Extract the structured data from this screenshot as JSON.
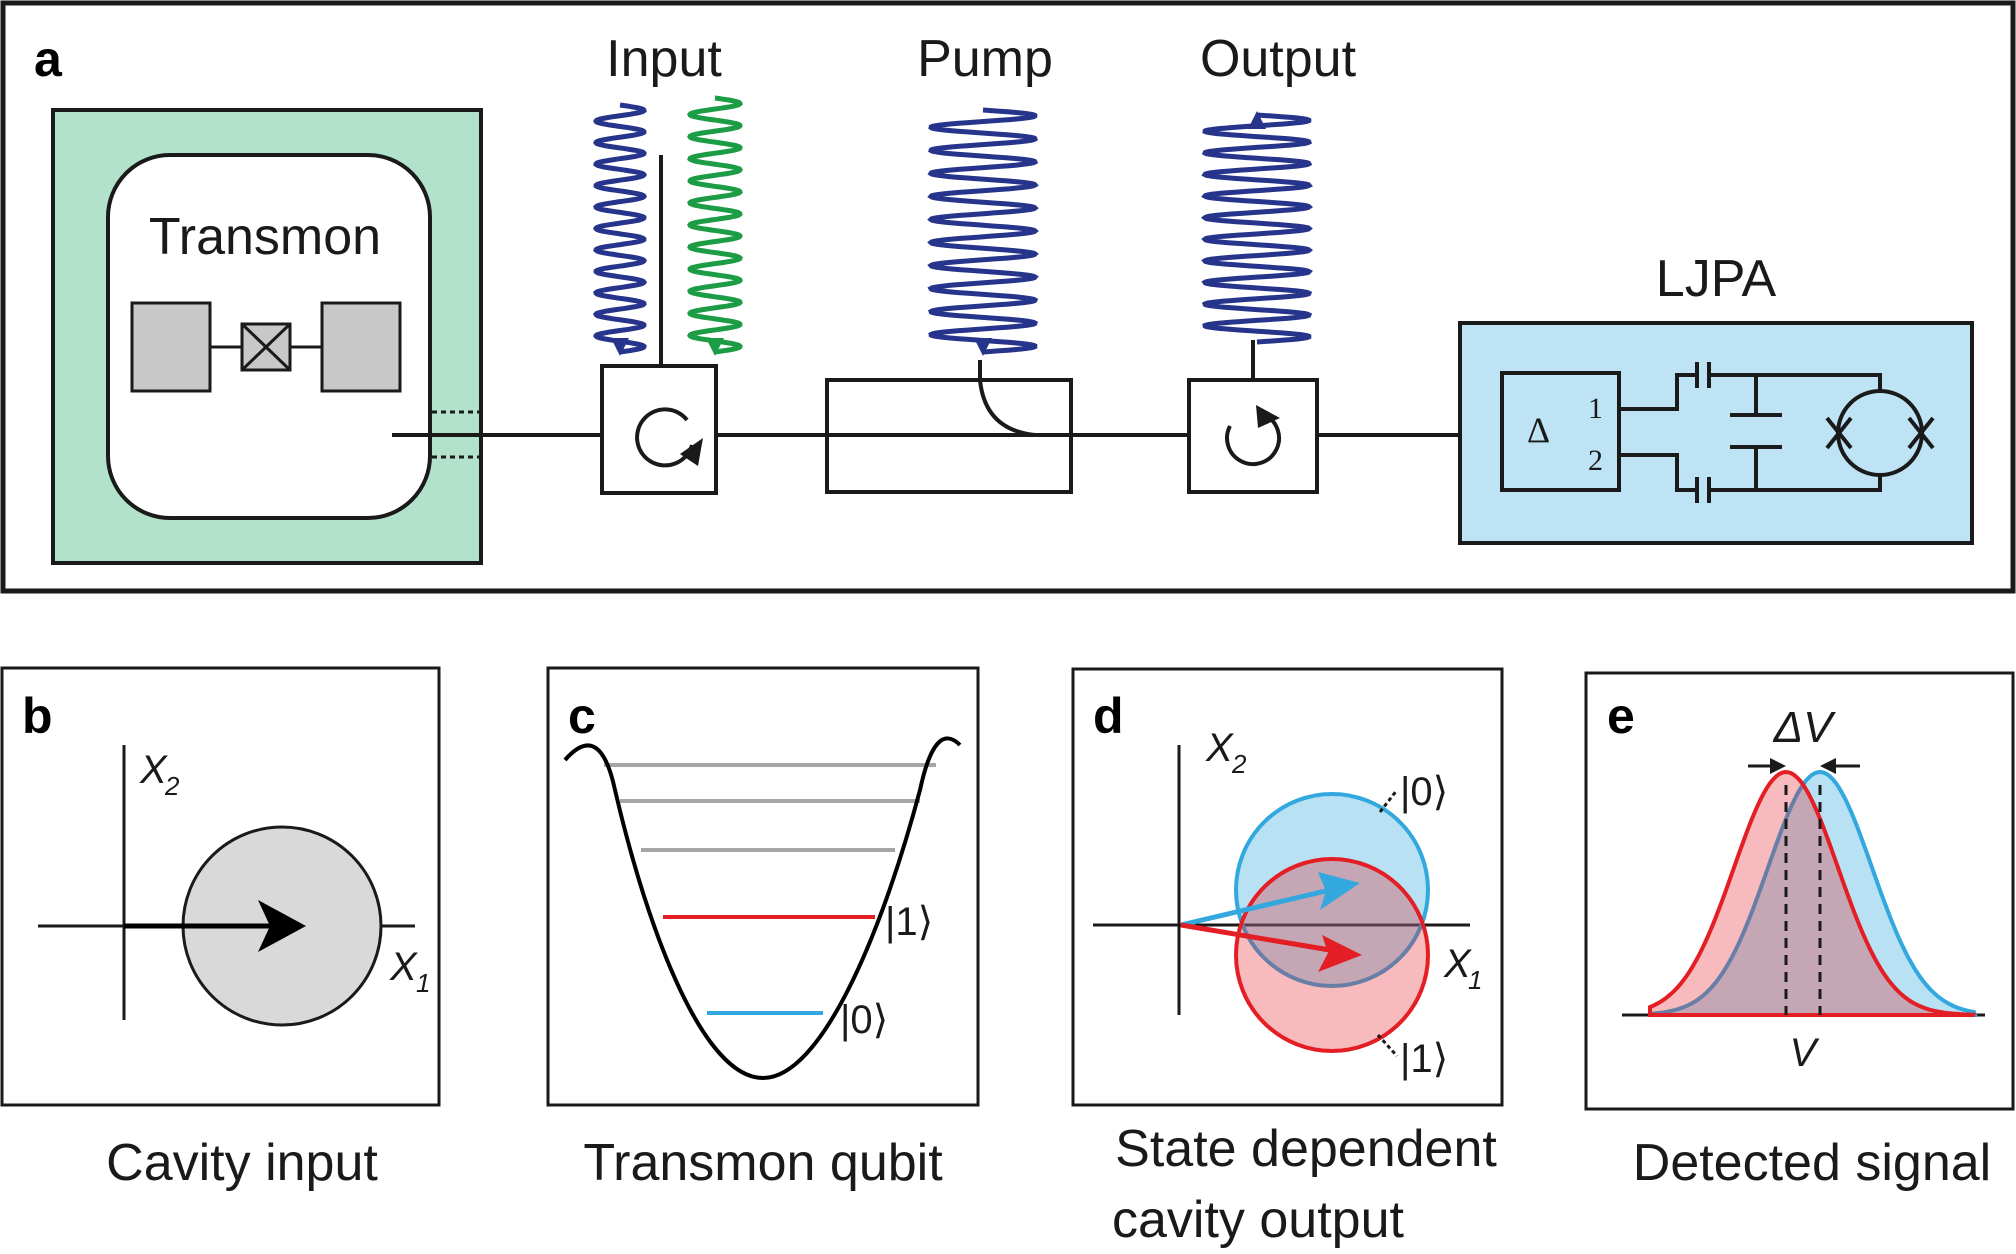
{
  "panels": {
    "a": {
      "letter": "a",
      "transmon": "Transmon",
      "input": "Input",
      "pump": "Pump",
      "output": "Output",
      "ljpa": "LJPA",
      "hybrid_symbol": "Δ",
      "port1": "1",
      "port2": "2"
    },
    "b": {
      "letter": "b",
      "x_axis": "X",
      "x_sub": "1",
      "y_axis": "X",
      "y_sub": "2",
      "caption": "Cavity input"
    },
    "c": {
      "letter": "c",
      "ket1": "|1⟩",
      "ket0": "|0⟩",
      "caption": "Transmon qubit"
    },
    "d": {
      "letter": "d",
      "x_axis": "X",
      "x_sub": "1",
      "y_axis": "X",
      "y_sub": "2",
      "ket0": "|0⟩",
      "ket1": "|1⟩",
      "caption_line1": "State dependent",
      "caption_line2": "cavity output"
    },
    "e": {
      "letter": "e",
      "delta_v": "ΔV",
      "v": "V",
      "caption": "Detected signal"
    }
  },
  "colors": {
    "cavity_green": "#b2e2cb",
    "ljpa_blue": "#bde3f4",
    "wave_blue": "#27348b",
    "wave_green": "#1c9d45",
    "state0_blue": "#33a8de",
    "state1_red": "#e31e24",
    "level_gray": "#a6a6a6",
    "phase_gray": "#d9d9d9"
  }
}
